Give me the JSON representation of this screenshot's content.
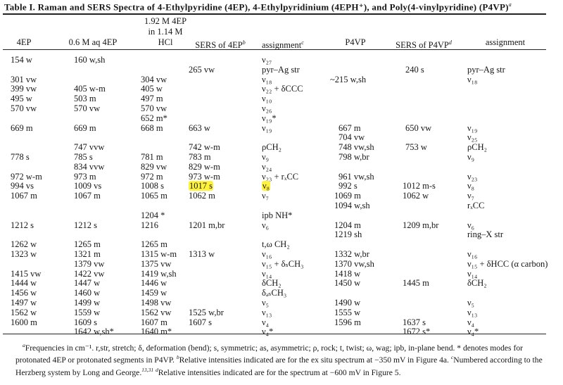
{
  "title": {
    "text": "Table I.  Raman and SERS Spectra of 4-Ethylpyridine (4EP), 4-Ethylpyridinium (4EPH⁺), and Poly(4-vinylpyridine) (P4VP)",
    "footnote_mark": "a"
  },
  "headers": {
    "col1": "4EP",
    "col2": "0.6 M aq 4EP",
    "col3_line1": "1.92 M 4EP",
    "col3_line2": "in 1.14 M",
    "col3_line3": "HCl",
    "col4": "SERS of 4EP",
    "col4_mark": "b",
    "col5": "assignment",
    "col5_mark": "c",
    "col6": "P4VP",
    "col7": "SERS of P4VP",
    "col7_mark": "d",
    "col8": "assignment"
  },
  "highlight_color": "#fff23a",
  "highlighted_cells": [
    [
      13,
      3
    ],
    [
      13,
      4
    ]
  ],
  "rows": [
    [
      "154 w",
      "160 w,sh",
      "",
      "",
      "ν₂₇",
      "",
      "",
      ""
    ],
    [
      "",
      "",
      "",
      "265 vw",
      "pyr–Ag str",
      "",
      "240 s",
      "pyr–Ag str"
    ],
    [
      "301 vw",
      "",
      "304 vw",
      "",
      "ν₁₈",
      "~215 w,sh",
      "",
      "ν₁₈"
    ],
    [
      "399 vw",
      "405 w-m",
      "405 w",
      "",
      "ν₂₂ + δCCC",
      "",
      "",
      ""
    ],
    [
      "495 w",
      "503 m",
      "497 m",
      "",
      "ν₁₀",
      "",
      "",
      ""
    ],
    [
      "570 vw",
      "570 vw",
      "570 vw",
      "",
      "ν₂₆",
      "",
      "",
      ""
    ],
    [
      "",
      "",
      "652 m*",
      "",
      "ν₁₉*",
      "",
      "",
      ""
    ],
    [
      "669 m",
      "669 m",
      "668 m",
      "663 w",
      "ν₁₉",
      "667 m",
      "650 vw",
      "ν₁₉"
    ],
    [
      "",
      "",
      "",
      "",
      "",
      "704 vw",
      "",
      "ν₂₅"
    ],
    [
      "",
      "747 vvw",
      "",
      "742 w-m",
      "ρCH₂",
      "748 vw,sh",
      "753 w",
      "ρCH₂"
    ],
    [
      "778 s",
      "785 s",
      "781 m",
      "783 m",
      "ν₉",
      "798 w,br",
      "",
      "ν₉"
    ],
    [
      "",
      "834 vvw",
      "829 vw",
      "829 w-m",
      "ν₂₄",
      "",
      "",
      ""
    ],
    [
      "972 w-m",
      "973 m",
      "972 m",
      "973 w-m",
      "ν₂₃ + rₓCC",
      "961 vw,sh",
      "",
      "ν₂₃"
    ],
    [
      "994 vs",
      "1009 vs",
      "1008 s",
      "1017 s",
      "ν₈",
      "992 s",
      "1012 m-s",
      "ν₈"
    ],
    [
      "1067 m",
      "1067 m",
      "1065 m",
      "1062 m",
      "ν₇",
      "1069 m",
      "1062 w",
      "ν₇"
    ],
    [
      "",
      "",
      "",
      "",
      "",
      "1094 w,sh",
      "",
      "rₓCC"
    ],
    [
      "",
      "",
      "1204 *",
      "",
      "ipb NH*",
      "",
      "",
      ""
    ],
    [
      "1212 s",
      "1212 s",
      "1216",
      "1201 m,br",
      "ν₆",
      "1204 m",
      "1209 m,br",
      "ν₆"
    ],
    [
      "",
      "",
      "",
      "",
      "",
      "1219 sh",
      "",
      "ring–X str"
    ],
    [
      "1262 w",
      "1265 m",
      "1265 m",
      "",
      "t,ω CH₂",
      "",
      "",
      ""
    ],
    [
      "1323 w",
      "1321 m",
      "1315 w-m",
      "1313 w",
      "ν₁₆",
      "1332 w,br",
      "",
      "ν₁₆"
    ],
    [
      "",
      "1379 vw",
      "1375 vw",
      "",
      "ν₁₅ + δₛCH₃",
      "1370 vw,sh",
      "",
      "ν₁₅ + δHCC (α carbon)"
    ],
    [
      "1415 vw",
      "1422 vw",
      "1419 w,sh",
      "",
      "ν₁₄",
      "1418 w",
      "",
      "ν₁₄"
    ],
    [
      "1444 w",
      "1447 w",
      "1446 w",
      "",
      "δCH₂",
      "1450 w",
      "1445 m",
      "δCH₂"
    ],
    [
      "1456 w",
      "1460 w",
      "1459 w",
      "",
      "δₐₛCH₃",
      "",
      "",
      ""
    ],
    [
      "1497 w",
      "1499 w",
      "1498 vw",
      "",
      "ν₅",
      "1490 w",
      "",
      "ν₅"
    ],
    [
      "1562 w",
      "1559 w",
      "1562 vw",
      "1525 w,br",
      "ν₁₃",
      "1555 w",
      "",
      "ν₁₃"
    ],
    [
      "1600 m",
      "1609 s",
      "1607 m",
      "1607 s",
      "ν₄",
      "1596 m",
      "1637 s",
      "ν₄"
    ],
    [
      "",
      "1642 w,sh*",
      "1640 m*",
      "",
      "ν₄*",
      "",
      "1672 s*",
      "ν₄*"
    ]
  ],
  "footnotes": {
    "a_mark": "a",
    "a_text": "Frequencies in cm⁻¹.  r,str, stretch; δ, deformation (bend); s, symmetric; as, asymmetric; ρ, rock; t, twist; ω, wag; ipb, in-plane bend.  * denotes modes for protonated 4EP or protonated segments in P4VP.  ",
    "b_mark": "b",
    "b_text": "Relative intensities indicated are for the ex situ spectrum at −350 mV in Figure 4a.  ",
    "c_mark": "c",
    "c_text": "Numbered according to the Herzberg system by Long and George.",
    "c_refs": "13,31",
    "d_mark": "d",
    "d_text": "Relative intensities indicated are for the spectrum at −600 mV in Figure 5."
  }
}
